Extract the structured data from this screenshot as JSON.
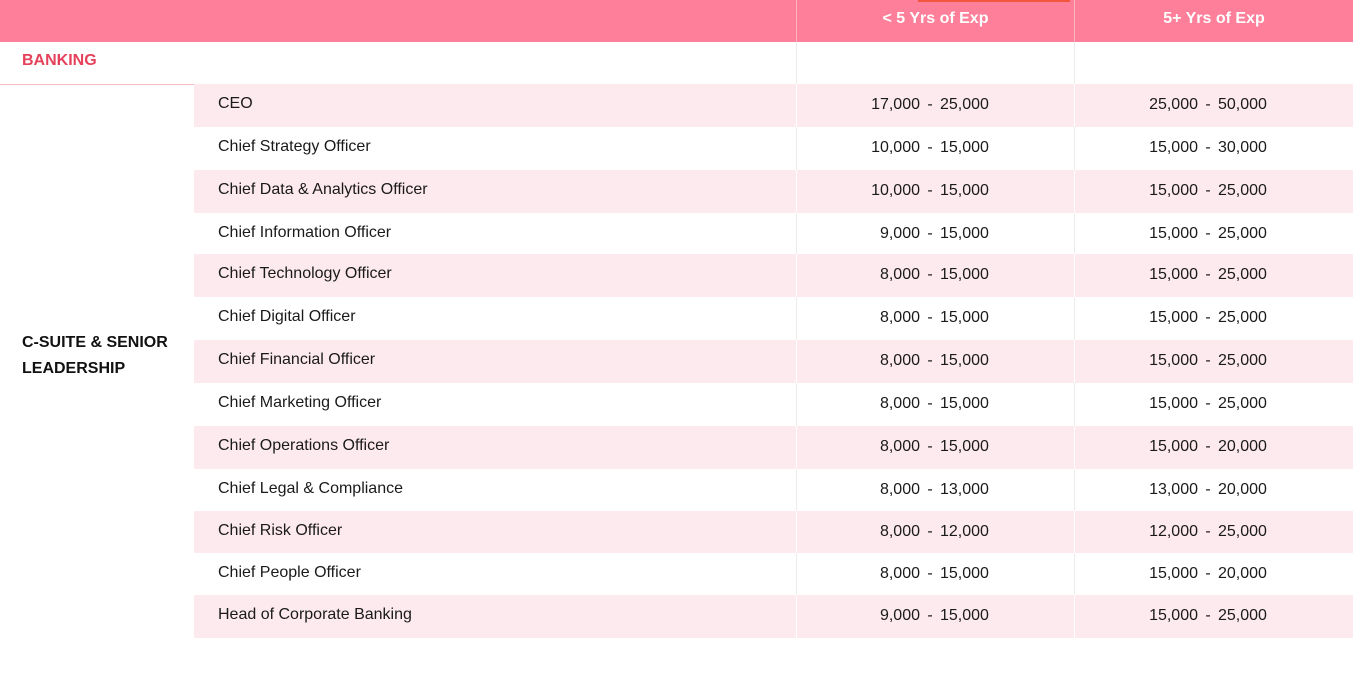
{
  "header": {
    "col_under5": "< 5 Yrs of Exp",
    "col_over5": "5+ Yrs of Exp"
  },
  "section": {
    "title": "BANKING"
  },
  "group": {
    "label": "C-SUITE & SENIOR LEADERSHIP"
  },
  "range_separator": "-",
  "rows": [
    {
      "role": "CEO",
      "under5_low": "17,000",
      "under5_high": "25,000",
      "over5_low": "25,000",
      "over5_high": "50,000"
    },
    {
      "role": "Chief Strategy Officer",
      "under5_low": "10,000",
      "under5_high": "15,000",
      "over5_low": "15,000",
      "over5_high": "30,000"
    },
    {
      "role": "Chief Data & Analytics Officer",
      "under5_low": "10,000",
      "under5_high": "15,000",
      "over5_low": "15,000",
      "over5_high": "25,000"
    },
    {
      "role": "Chief Information Officer",
      "under5_low": "9,000",
      "under5_high": "15,000",
      "over5_low": "15,000",
      "over5_high": "25,000"
    },
    {
      "role": "Chief Technology Officer",
      "under5_low": "8,000",
      "under5_high": "15,000",
      "over5_low": "15,000",
      "over5_high": "25,000"
    },
    {
      "role": "Chief Digital Officer",
      "under5_low": "8,000",
      "under5_high": "15,000",
      "over5_low": "15,000",
      "over5_high": "25,000"
    },
    {
      "role": "Chief Financial Officer",
      "under5_low": "8,000",
      "under5_high": "15,000",
      "over5_low": "15,000",
      "over5_high": "25,000"
    },
    {
      "role": "Chief Marketing Officer",
      "under5_low": "8,000",
      "under5_high": "15,000",
      "over5_low": "15,000",
      "over5_high": "25,000"
    },
    {
      "role": "Chief Operations Officer",
      "under5_low": "8,000",
      "under5_high": "15,000",
      "over5_low": "15,000",
      "over5_high": "20,000"
    },
    {
      "role": "Chief Legal & Compliance",
      "under5_low": "8,000",
      "under5_high": "13,000",
      "over5_low": "13,000",
      "over5_high": "20,000"
    },
    {
      "role": "Chief Risk Officer",
      "under5_low": "8,000",
      "under5_high": "12,000",
      "over5_low": "12,000",
      "over5_high": "25,000"
    },
    {
      "role": "Chief People Officer",
      "under5_low": "8,000",
      "under5_high": "15,000",
      "over5_low": "15,000",
      "over5_high": "20,000"
    },
    {
      "role": "Head of Corporate Banking",
      "under5_low": "9,000",
      "under5_high": "15,000",
      "over5_low": "15,000",
      "over5_high": "25,000"
    }
  ],
  "colors": {
    "header_bg": "#fd7f99",
    "section_title": "#e5415b",
    "row_shade": "#fdeaee",
    "accent": "#f2563c"
  }
}
